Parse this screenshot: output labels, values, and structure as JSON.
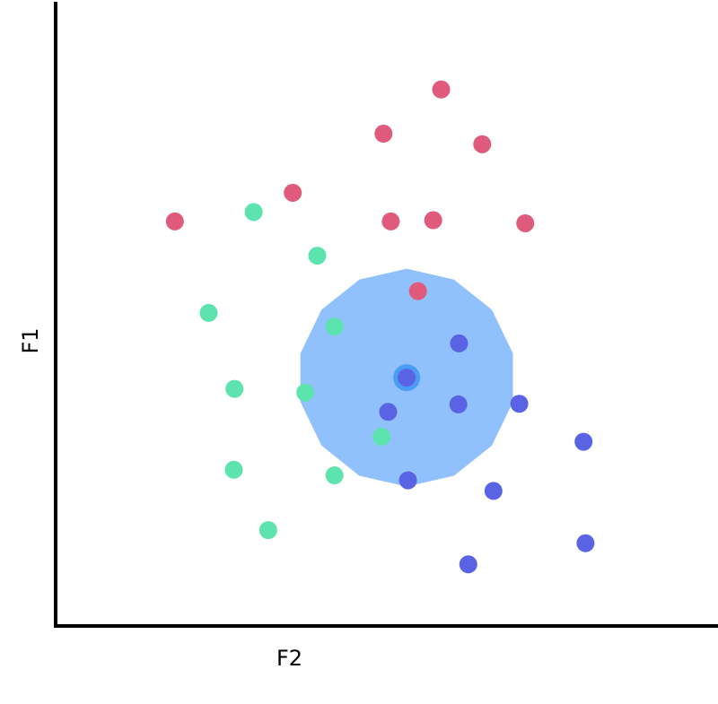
{
  "chart_data": {
    "type": "scatter",
    "title": "",
    "xlabel": "F2",
    "ylabel": "F1",
    "xlim": [
      0,
      100
    ],
    "ylim": [
      0,
      100
    ],
    "grid": false,
    "ticks": false,
    "colors": {
      "red": "#e05a7b",
      "green": "#5de3ad",
      "blue": "#5a63e3",
      "region": "#91c1fc",
      "query_ring": "#4d9cf4",
      "axis": "#000000"
    },
    "series": [
      {
        "color": "red",
        "points": [
          {
            "x": 58.2,
            "y": 86.2
          },
          {
            "x": 49.5,
            "y": 79.1
          },
          {
            "x": 64.4,
            "y": 77.4
          },
          {
            "x": 35.8,
            "y": 69.6
          },
          {
            "x": 18.0,
            "y": 65.0
          },
          {
            "x": 50.6,
            "y": 65.0
          },
          {
            "x": 57.0,
            "y": 65.2
          },
          {
            "x": 70.9,
            "y": 64.7
          },
          {
            "x": 54.7,
            "y": 53.8
          }
        ]
      },
      {
        "color": "green",
        "points": [
          {
            "x": 29.9,
            "y": 66.5
          },
          {
            "x": 39.5,
            "y": 59.5
          },
          {
            "x": 23.1,
            "y": 50.3
          },
          {
            "x": 42.1,
            "y": 48.1
          },
          {
            "x": 27.0,
            "y": 38.1
          },
          {
            "x": 37.7,
            "y": 37.5
          },
          {
            "x": 49.2,
            "y": 30.4
          },
          {
            "x": 26.9,
            "y": 25.1
          },
          {
            "x": 42.1,
            "y": 24.2
          },
          {
            "x": 32.1,
            "y": 15.4
          }
        ]
      },
      {
        "color": "blue",
        "points": [
          {
            "x": 60.9,
            "y": 45.4
          },
          {
            "x": 53.0,
            "y": 39.9
          },
          {
            "x": 60.8,
            "y": 35.6
          },
          {
            "x": 70.0,
            "y": 35.7
          },
          {
            "x": 50.2,
            "y": 34.4
          },
          {
            "x": 79.7,
            "y": 29.6
          },
          {
            "x": 53.2,
            "y": 23.4
          },
          {
            "x": 66.1,
            "y": 21.7
          },
          {
            "x": 80.0,
            "y": 13.3
          },
          {
            "x": 62.3,
            "y": 9.9
          }
        ]
      }
    ],
    "query_point": {
      "x": 53.0,
      "y": 39.9,
      "color": "blue"
    },
    "neighborhood": {
      "center_x": 53.0,
      "center_y": 39.9,
      "radius": 17.5,
      "sides": 14
    }
  }
}
